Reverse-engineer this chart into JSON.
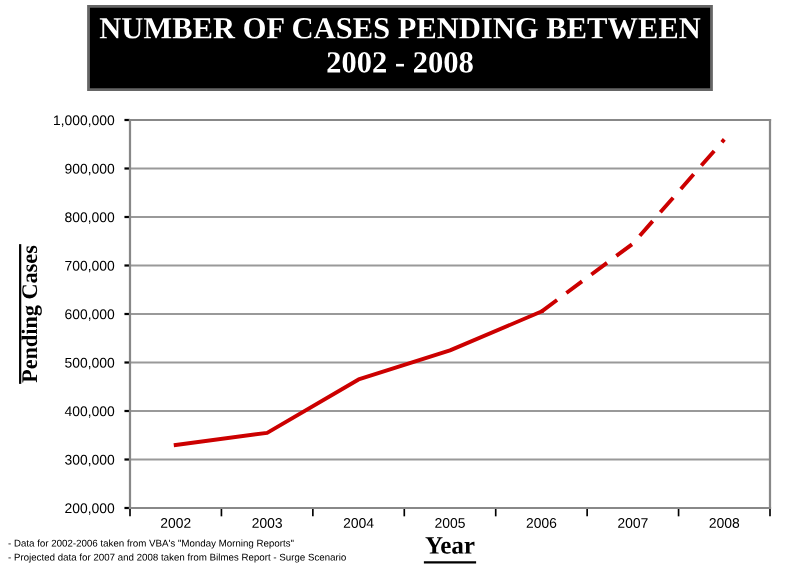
{
  "chart_data": {
    "type": "line",
    "title": "NUMBER OF CASES PENDING BETWEEN\n2002 - 2008",
    "xlabel": "Year",
    "ylabel": "Pending Cases",
    "categories": [
      "2002",
      "2003",
      "2004",
      "2005",
      "2006",
      "2007",
      "2008"
    ],
    "series": [
      {
        "color": "#cc0000",
        "line_style": "solid",
        "values": [
          330000,
          355000,
          465000,
          525000,
          605000,
          null,
          null
        ]
      },
      {
        "color": "#cc0000",
        "line_style": "dashed",
        "values": [
          null,
          null,
          null,
          null,
          605000,
          745000,
          960000
        ]
      }
    ],
    "ylim": [
      200000,
      1000000
    ],
    "yticks": [
      {
        "value": 200000,
        "label": "200,000"
      },
      {
        "value": 300000,
        "label": "300,000"
      },
      {
        "value": 400000,
        "label": "400,000"
      },
      {
        "value": 500000,
        "label": "500,000"
      },
      {
        "value": 600000,
        "label": "600,000"
      },
      {
        "value": 700000,
        "label": "700,000"
      },
      {
        "value": 800000,
        "label": "800,000"
      },
      {
        "value": 900000,
        "label": "900,000"
      },
      {
        "value": 1000000,
        "label": "1,000,000"
      }
    ],
    "grid": "y",
    "legend": false,
    "marker": "none",
    "annotations": [
      "- Data for 2002-2006 taken from VBA's \"Monday Morning Reports\"",
      "- Projected data for 2007 and 2008 taken from Bilmes Report - Surge Scenario"
    ]
  }
}
